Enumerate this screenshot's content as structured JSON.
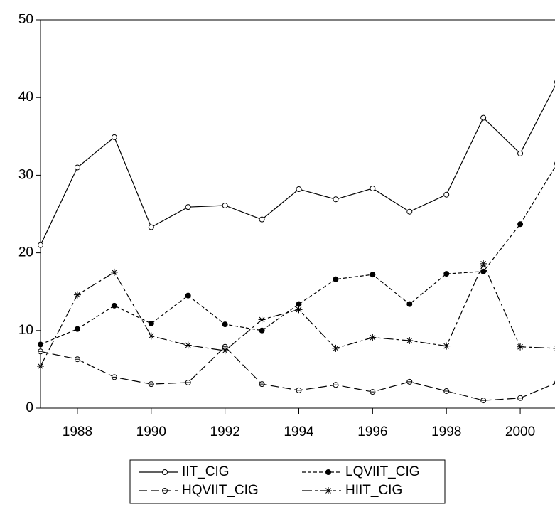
{
  "chart_data": {
    "type": "line",
    "x": [
      1987,
      1988,
      1989,
      1990,
      1991,
      1992,
      1993,
      1994,
      1995,
      1996,
      1997,
      1998,
      1999,
      2000,
      2001
    ],
    "xlim": [
      1987,
      2001
    ],
    "xticks": [
      1988,
      1990,
      1992,
      1994,
      1996,
      1998,
      2000
    ],
    "ylim": [
      0,
      50
    ],
    "yticks": [
      0,
      10,
      20,
      30,
      40,
      50
    ],
    "series": [
      {
        "name": "IIT_CIG",
        "color": "#000000",
        "dash": "solid",
        "marker": "open-circle",
        "values": [
          21.0,
          31.0,
          34.9,
          23.3,
          25.9,
          26.1,
          24.3,
          28.2,
          26.9,
          28.3,
          25.3,
          27.5,
          37.4,
          32.8,
          42.0
        ]
      },
      {
        "name": "LQVIIT_CIG",
        "color": "#000000",
        "dash": "short",
        "marker": "filled-circle",
        "values": [
          8.2,
          10.2,
          13.2,
          10.9,
          14.5,
          10.8,
          10.0,
          13.4,
          16.6,
          17.2,
          13.4,
          17.3,
          17.6,
          23.7,
          31.5
        ]
      },
      {
        "name": "HQVIIT_CIG",
        "color": "#000000",
        "dash": "long",
        "marker": "half-circle",
        "values": [
          7.3,
          6.3,
          4.0,
          3.1,
          3.3,
          7.9,
          3.1,
          2.3,
          3.0,
          2.1,
          3.4,
          2.2,
          1.0,
          1.3,
          3.3
        ]
      },
      {
        "name": "HIIT_CIG",
        "color": "#000000",
        "dash": "long-short",
        "marker": "star",
        "values": [
          5.4,
          14.6,
          17.5,
          9.3,
          8.1,
          7.4,
          11.4,
          12.7,
          7.7,
          9.1,
          8.7,
          8.0,
          18.6,
          7.9,
          7.7
        ]
      }
    ]
  }
}
